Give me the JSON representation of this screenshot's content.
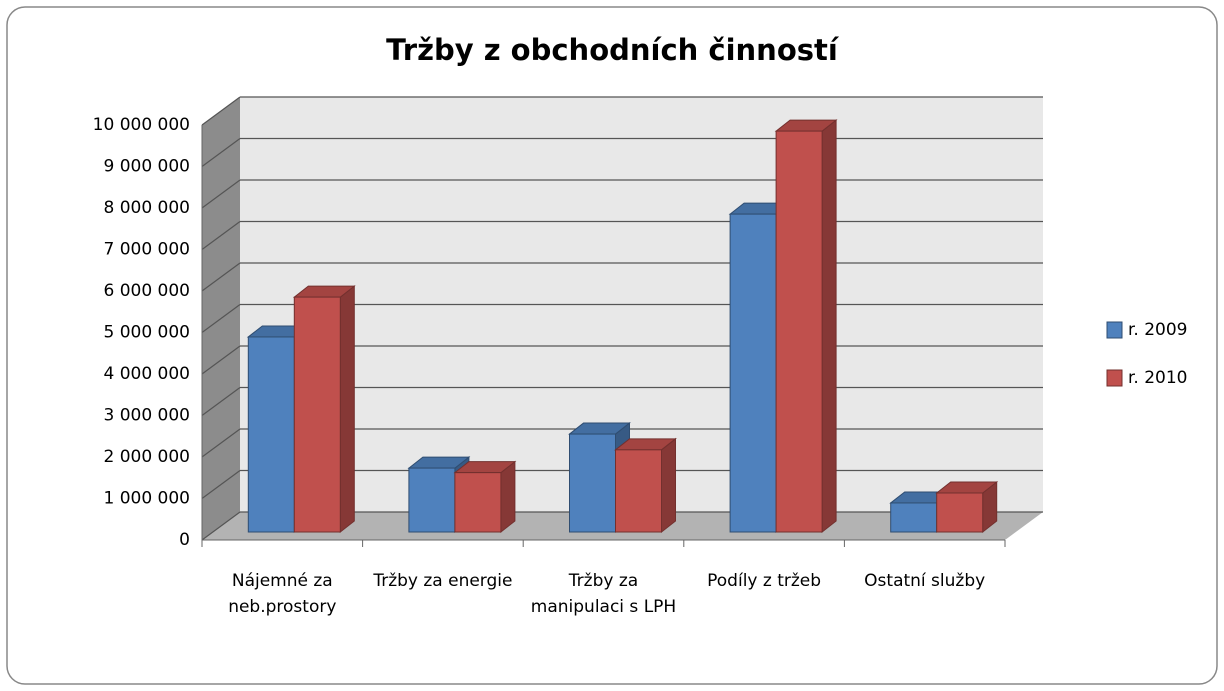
{
  "chart_data": {
    "type": "bar3d",
    "title": "Tržby z obchodních činností",
    "categories": [
      "Nájemné za neb.prostory",
      "Tržby za energie",
      "Tržby za manipulaci s LPH",
      "Podíly z tržeb",
      "Ostatní služby"
    ],
    "series": [
      {
        "name": "r. 2009",
        "color": "#4f81bd",
        "values": [
          4700000,
          1540000,
          2360000,
          7660000,
          700000
        ]
      },
      {
        "name": "r. 2010",
        "color": "#c0504d",
        "values": [
          5660000,
          1430000,
          1980000,
          9660000,
          940000
        ]
      }
    ],
    "ylim": [
      0,
      10000000
    ],
    "yticks": [
      0,
      {
        "value": 1000000,
        "label": "1 000 000"
      },
      {
        "value": 2000000,
        "label": "2 000 000"
      },
      {
        "value": 3000000,
        "label": "3 000 000"
      },
      {
        "value": 4000000,
        "label": "4 000 000"
      },
      {
        "value": 5000000,
        "label": "5 000 000"
      },
      {
        "value": 6000000,
        "label": "6 000 000"
      },
      {
        "value": 7000000,
        "label": "7 000 000"
      },
      {
        "value": 8000000,
        "label": "8 000 000"
      },
      {
        "value": 9000000,
        "label": "9 000 000"
      },
      {
        "value": 10000000,
        "label": "10 000 000"
      }
    ],
    "grid": true,
    "legend": "right"
  }
}
